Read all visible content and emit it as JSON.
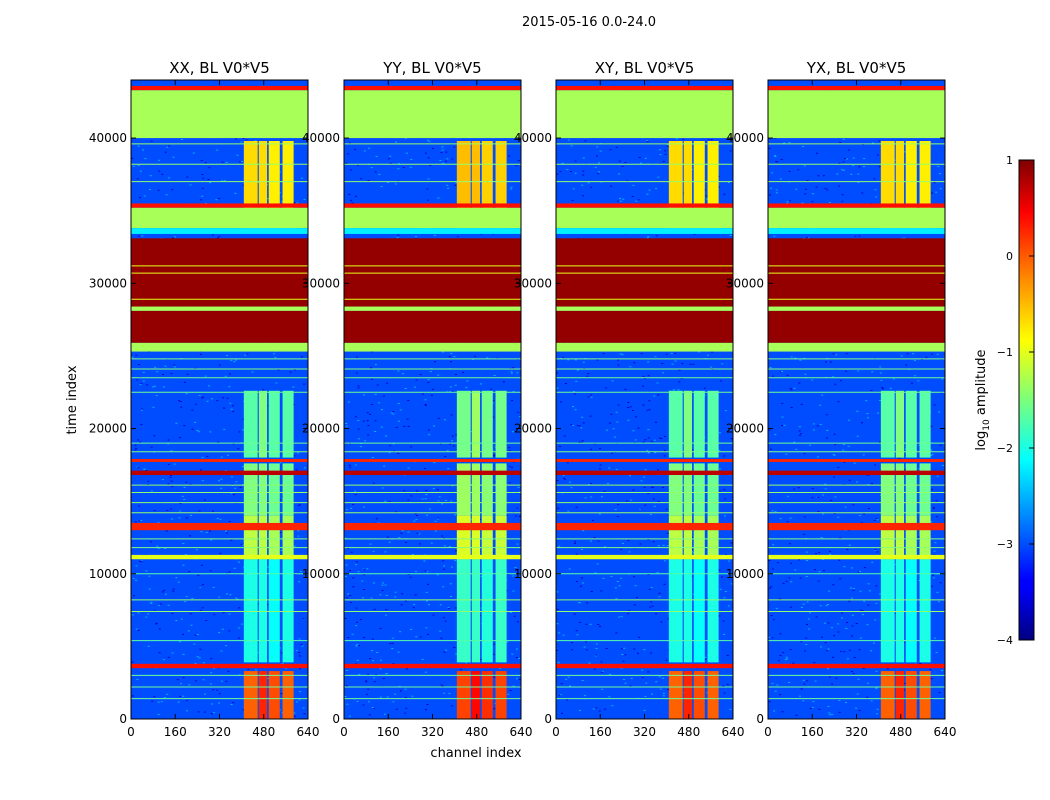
{
  "figure": {
    "suptitle": "2015-05-16 0.0-24.0",
    "xlabel": "channel index",
    "ylabel": "time index"
  },
  "colorbar": {
    "label_main": "log",
    "label_sub": "10",
    "label_rest": " amplitude",
    "ticks": [
      -4,
      -3,
      -2,
      -1,
      0,
      1
    ],
    "tick_labels": [
      "−4",
      "−3",
      "−2",
      "−1",
      "0",
      "1"
    ],
    "range": [
      -4,
      1
    ],
    "colormap": "jet"
  },
  "chart_data": {
    "type": "heatmap",
    "xlim": [
      0,
      640
    ],
    "ylim": [
      0,
      44000
    ],
    "xticks": [
      0,
      160,
      320,
      480,
      640
    ],
    "yticks": [
      0,
      10000,
      20000,
      30000,
      40000
    ],
    "xtick_labels": [
      "0",
      "160",
      "320",
      "480",
      "640"
    ],
    "ytick_labels": [
      "0",
      "10000",
      "20000",
      "30000",
      "40000"
    ],
    "panels": [
      {
        "title": "XX, BL V0*V5"
      },
      {
        "title": "YY, BL V0*V5"
      },
      {
        "title": "XY, BL V0*V5"
      },
      {
        "title": "YX, BL V0*V5"
      }
    ],
    "background_level": -3.0,
    "horizontal_bands": [
      {
        "y": [
          40000,
          43300
        ],
        "level": -1.3
      },
      {
        "y": [
          43300,
          43600
        ],
        "level": 0.3
      },
      {
        "y": [
          43600,
          44000
        ],
        "level": -3.0
      },
      {
        "y": [
          35200,
          35500
        ],
        "level": 0.3
      },
      {
        "y": [
          33800,
          35200
        ],
        "level": -1.3
      },
      {
        "y": [
          33400,
          33800
        ],
        "level": -2.2
      },
      {
        "y": [
          28400,
          33100
        ],
        "level": 0.9
      },
      {
        "y": [
          28100,
          28400
        ],
        "level": -1.3
      },
      {
        "y": [
          25900,
          28100
        ],
        "level": 0.9
      },
      {
        "y": [
          25300,
          25900
        ],
        "level": -1.3
      },
      {
        "y": [
          17700,
          17900
        ],
        "level": 0.2
      },
      {
        "y": [
          16800,
          17100
        ],
        "level": 0.7
      },
      {
        "y": [
          13000,
          13500
        ],
        "level": 0.2
      },
      {
        "y": [
          11000,
          11300
        ],
        "level": -1.0
      },
      {
        "y": [
          3500,
          3800
        ],
        "level": 0.3
      }
    ],
    "horizontal_lines": [
      {
        "y": 39600,
        "level": -1.4
      },
      {
        "y": 38200,
        "level": -1.4
      },
      {
        "y": 37000,
        "level": -1.4
      },
      {
        "y": 31200,
        "level": -1.0
      },
      {
        "y": 30700,
        "level": -1.0
      },
      {
        "y": 28900,
        "level": -1.0
      },
      {
        "y": 24800,
        "level": -1.5
      },
      {
        "y": 24100,
        "level": -1.5
      },
      {
        "y": 23500,
        "level": -1.6
      },
      {
        "y": 22500,
        "level": -1.6
      },
      {
        "y": 19000,
        "level": -1.6
      },
      {
        "y": 18400,
        "level": -1.5
      },
      {
        "y": 16100,
        "level": -1.4
      },
      {
        "y": 15600,
        "level": -1.4
      },
      {
        "y": 14900,
        "level": -1.4
      },
      {
        "y": 14200,
        "level": -1.4
      },
      {
        "y": 12400,
        "level": -1.5
      },
      {
        "y": 11800,
        "level": -1.5
      },
      {
        "y": 10000,
        "level": -1.7
      },
      {
        "y": 8200,
        "level": -1.4
      },
      {
        "y": 7400,
        "level": -1.4
      },
      {
        "y": 5400,
        "level": -1.7
      },
      {
        "y": 3000,
        "level": -1.6
      },
      {
        "y": 2200,
        "level": -1.6
      },
      {
        "y": 1400,
        "level": -1.6
      }
    ],
    "channel_columns": [
      {
        "x": [
          408,
          458
        ]
      },
      {
        "x": [
          462,
          492
        ]
      },
      {
        "x": [
          498,
          538
        ]
      },
      {
        "x": [
          548,
          588
        ]
      }
    ],
    "column_blocks": [
      {
        "y": [
          33800,
          39800
        ],
        "levels": [
          -0.7,
          -0.7,
          -0.8,
          -0.8
        ]
      },
      {
        "y": [
          17700,
          17900
        ],
        "levels": [
          0.4,
          0.4,
          0.4,
          0.4
        ]
      },
      {
        "y": [
          16800,
          17300
        ],
        "levels": [
          0.8,
          0.8,
          0.8,
          0.8
        ]
      },
      {
        "y": [
          0,
          3300
        ],
        "levels": [
          -0.1,
          0.2,
          0.0,
          -0.1
        ]
      },
      {
        "y": [
          14000,
          17600
        ],
        "levels": [
          -1.5,
          -1.5,
          -1.6,
          -1.6
        ]
      },
      {
        "y": [
          11000,
          14000
        ],
        "levels": [
          -1.2,
          -1.2,
          -1.3,
          -1.3
        ]
      },
      {
        "y": [
          18000,
          22600
        ],
        "levels": [
          -1.7,
          -1.5,
          -1.7,
          -1.7
        ]
      },
      {
        "y": [
          3900,
          11000
        ],
        "levels": [
          -2.0,
          -2.0,
          -2.1,
          -2.0
        ]
      }
    ]
  }
}
